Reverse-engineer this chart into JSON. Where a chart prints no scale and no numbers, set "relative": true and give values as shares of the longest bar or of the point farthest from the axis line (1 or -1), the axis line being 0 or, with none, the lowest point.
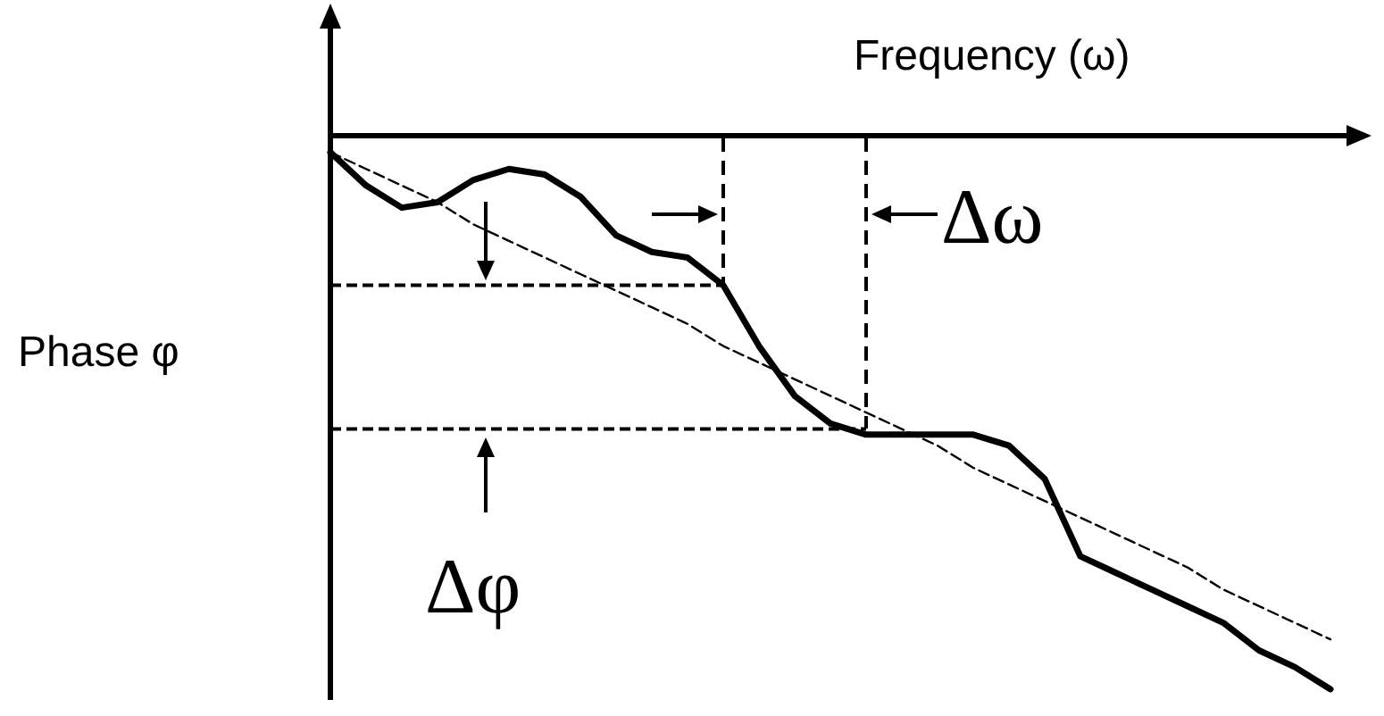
{
  "chart_data": {
    "type": "line",
    "relative": true,
    "xlabel": "Frequency (ω)",
    "ylabel": "Phase φ",
    "annotations": [
      "Δω",
      "Δφ"
    ],
    "line_style": "solid",
    "categories": [
      null,
      null,
      null,
      null,
      null,
      null,
      null,
      null,
      null,
      null,
      null,
      null,
      null,
      null,
      null,
      null,
      null,
      null,
      null,
      null,
      null,
      null,
      null,
      null,
      null,
      null,
      null,
      null,
      null
    ],
    "series": [
      {
        "color": "#000000",
        "values": [
          -0.03,
          -0.09,
          -0.13,
          -0.12,
          -0.08,
          -0.06,
          -0.07,
          -0.11,
          -0.18,
          -0.21,
          -0.22,
          -0.27,
          -0.38,
          -0.47,
          -0.52,
          -0.54,
          -0.54,
          -0.54,
          -0.54,
          -0.56,
          -0.62,
          -0.76,
          -0.79,
          -0.82,
          -0.85,
          -0.88,
          -0.93,
          -0.96,
          -1
        ]
      },
      {
        "type": "line",
        "color": "#000000",
        "line_style": "dashed",
        "values": [
          -0.03,
          -0.06,
          -0.09,
          -0.12,
          -0.16,
          -0.19,
          -0.22,
          -0.25,
          -0.28,
          -0.31,
          -0.34,
          -0.38,
          -0.41,
          -0.44,
          -0.47,
          -0.5,
          -0.53,
          -0.56,
          -0.6,
          -0.63,
          -0.66,
          -0.69,
          -0.72,
          -0.75,
          -0.78,
          -0.82,
          -0.85,
          -0.88,
          -0.91
        ]
      }
    ],
    "ref_lines": [
      {
        "axis": "y",
        "value": -0.27,
        "line_style": "dashed"
      },
      {
        "axis": "y",
        "value": -0.53,
        "line_style": "dashed"
      }
    ]
  }
}
